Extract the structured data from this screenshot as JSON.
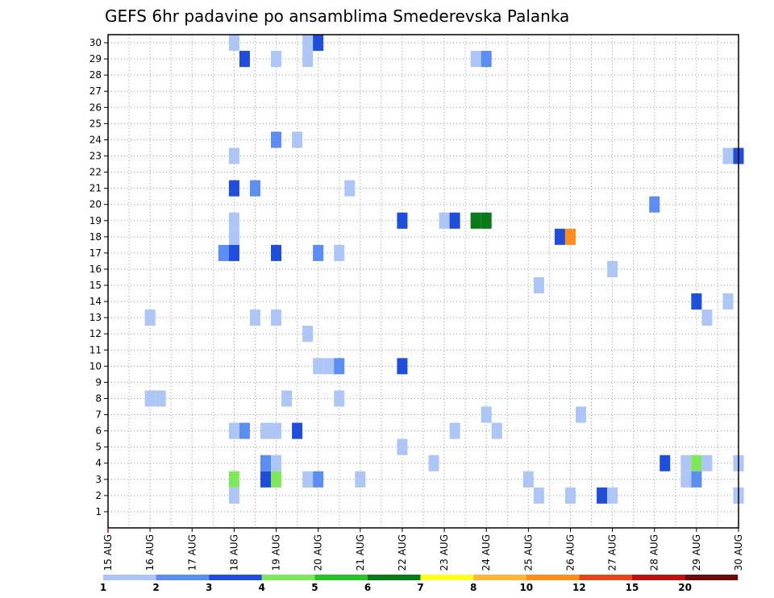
{
  "chart_data": {
    "type": "heatmap",
    "title": "GEFS 6hr padavine po ansamblima Smederevska Palanka",
    "xlabel": "",
    "ylabel": "",
    "x_tick_labels": [
      "15 AUG",
      "16 AUG",
      "17 AUG",
      "18 AUG",
      "19 AUG",
      "20 AUG",
      "21 AUG",
      "22 AUG",
      "23 AUG",
      "24 AUG",
      "25 AUG",
      "26 AUG",
      "27 AUG",
      "28 AUG",
      "29 AUG",
      "30 AUG"
    ],
    "y_tick_labels": [
      "1",
      "2",
      "3",
      "4",
      "5",
      "6",
      "7",
      "8",
      "9",
      "10",
      "11",
      "12",
      "13",
      "14",
      "15",
      "16",
      "17",
      "18",
      "19",
      "20",
      "21",
      "22",
      "23",
      "24",
      "25",
      "26",
      "27",
      "28",
      "29",
      "30"
    ],
    "x_domain_days": [
      15,
      30
    ],
    "y_domain": [
      0,
      30.5
    ],
    "grid": true,
    "colorbar": {
      "labels": [
        "1",
        "2",
        "3",
        "4",
        "5",
        "6",
        "7",
        "8",
        "10",
        "12",
        "15",
        "20"
      ],
      "colors": [
        "#aec6f5",
        "#5b8ef0",
        "#1f4fd8",
        "#7fe85a",
        "#27c22a",
        "#0a7a18",
        "#ffff22",
        "#ffb43c",
        "#ff8c1e",
        "#e6461e",
        "#b91414",
        "#6e0a0a"
      ]
    },
    "cells": [
      {
        "day": 18.0,
        "member": 30,
        "c": 0
      },
      {
        "day": 19.75,
        "member": 30,
        "c": 0
      },
      {
        "day": 20.0,
        "member": 30,
        "c": 2
      },
      {
        "day": 18.25,
        "member": 29,
        "c": 2
      },
      {
        "day": 19.0,
        "member": 29,
        "c": 0
      },
      {
        "day": 19.75,
        "member": 29,
        "c": 0
      },
      {
        "day": 23.75,
        "member": 29,
        "c": 0
      },
      {
        "day": 24.0,
        "member": 29,
        "c": 1
      },
      {
        "day": 19.0,
        "member": 24,
        "c": 1
      },
      {
        "day": 19.5,
        "member": 24,
        "c": 0
      },
      {
        "day": 18.0,
        "member": 23,
        "c": 0
      },
      {
        "day": 29.75,
        "member": 23,
        "c": 0
      },
      {
        "day": 30.0,
        "member": 23,
        "c": 2
      },
      {
        "day": 18.0,
        "member": 21,
        "c": 2
      },
      {
        "day": 18.5,
        "member": 21,
        "c": 1
      },
      {
        "day": 20.75,
        "member": 21,
        "c": 0
      },
      {
        "day": 28.0,
        "member": 20,
        "c": 1
      },
      {
        "day": 18.0,
        "member": 19,
        "c": 0
      },
      {
        "day": 22.0,
        "member": 19,
        "c": 2
      },
      {
        "day": 23.0,
        "member": 19,
        "c": 0
      },
      {
        "day": 23.25,
        "member": 19,
        "c": 2
      },
      {
        "day": 23.75,
        "member": 19,
        "c": 5
      },
      {
        "day": 24.0,
        "member": 19,
        "c": 5
      },
      {
        "day": 18.0,
        "member": 18,
        "c": 0
      },
      {
        "day": 25.75,
        "member": 18,
        "c": 2
      },
      {
        "day": 26.0,
        "member": 18,
        "c": 8
      },
      {
        "day": 17.75,
        "member": 17,
        "c": 1
      },
      {
        "day": 18.0,
        "member": 17,
        "c": 2
      },
      {
        "day": 19.0,
        "member": 17,
        "c": 2
      },
      {
        "day": 20.0,
        "member": 17,
        "c": 1
      },
      {
        "day": 20.5,
        "member": 17,
        "c": 0
      },
      {
        "day": 27.0,
        "member": 16,
        "c": 0
      },
      {
        "day": 25.25,
        "member": 15,
        "c": 0
      },
      {
        "day": 29.0,
        "member": 14,
        "c": 2
      },
      {
        "day": 29.75,
        "member": 14,
        "c": 0
      },
      {
        "day": 16.0,
        "member": 13,
        "c": 0
      },
      {
        "day": 18.5,
        "member": 13,
        "c": 0
      },
      {
        "day": 19.0,
        "member": 13,
        "c": 0
      },
      {
        "day": 29.25,
        "member": 13,
        "c": 0
      },
      {
        "day": 19.75,
        "member": 12,
        "c": 0
      },
      {
        "day": 20.0,
        "member": 10,
        "c": 0
      },
      {
        "day": 20.25,
        "member": 10,
        "c": 0
      },
      {
        "day": 20.5,
        "member": 10,
        "c": 1
      },
      {
        "day": 22.0,
        "member": 10,
        "c": 2
      },
      {
        "day": 16.0,
        "member": 8,
        "c": 0
      },
      {
        "day": 16.25,
        "member": 8,
        "c": 0
      },
      {
        "day": 19.25,
        "member": 8,
        "c": 0
      },
      {
        "day": 20.5,
        "member": 8,
        "c": 0
      },
      {
        "day": 24.0,
        "member": 7,
        "c": 0
      },
      {
        "day": 26.25,
        "member": 7,
        "c": 0
      },
      {
        "day": 18.0,
        "member": 6,
        "c": 0
      },
      {
        "day": 18.25,
        "member": 6,
        "c": 1
      },
      {
        "day": 18.75,
        "member": 6,
        "c": 0
      },
      {
        "day": 19.0,
        "member": 6,
        "c": 0
      },
      {
        "day": 19.5,
        "member": 6,
        "c": 2
      },
      {
        "day": 23.25,
        "member": 6,
        "c": 0
      },
      {
        "day": 24.25,
        "member": 6,
        "c": 0
      },
      {
        "day": 22.0,
        "member": 5,
        "c": 0
      },
      {
        "day": 18.75,
        "member": 4,
        "c": 1
      },
      {
        "day": 19.0,
        "member": 4,
        "c": 0
      },
      {
        "day": 22.75,
        "member": 4,
        "c": 0
      },
      {
        "day": 28.25,
        "member": 4,
        "c": 2
      },
      {
        "day": 28.75,
        "member": 4,
        "c": 0
      },
      {
        "day": 29.0,
        "member": 4,
        "c": 3
      },
      {
        "day": 29.25,
        "member": 4,
        "c": 0
      },
      {
        "day": 30.0,
        "member": 4,
        "c": 0
      },
      {
        "day": 18.0,
        "member": 3,
        "c": 3
      },
      {
        "day": 18.75,
        "member": 3,
        "c": 2
      },
      {
        "day": 19.0,
        "member": 3,
        "c": 3
      },
      {
        "day": 19.75,
        "member": 3,
        "c": 0
      },
      {
        "day": 20.0,
        "member": 3,
        "c": 1
      },
      {
        "day": 21.0,
        "member": 3,
        "c": 0
      },
      {
        "day": 25.0,
        "member": 3,
        "c": 0
      },
      {
        "day": 28.75,
        "member": 3,
        "c": 0
      },
      {
        "day": 29.0,
        "member": 3,
        "c": 1
      },
      {
        "day": 18.0,
        "member": 2,
        "c": 0
      },
      {
        "day": 25.25,
        "member": 2,
        "c": 0
      },
      {
        "day": 26.0,
        "member": 2,
        "c": 0
      },
      {
        "day": 26.75,
        "member": 2,
        "c": 2
      },
      {
        "day": 27.0,
        "member": 2,
        "c": 0
      },
      {
        "day": 30.0,
        "member": 2,
        "c": 0
      }
    ]
  }
}
